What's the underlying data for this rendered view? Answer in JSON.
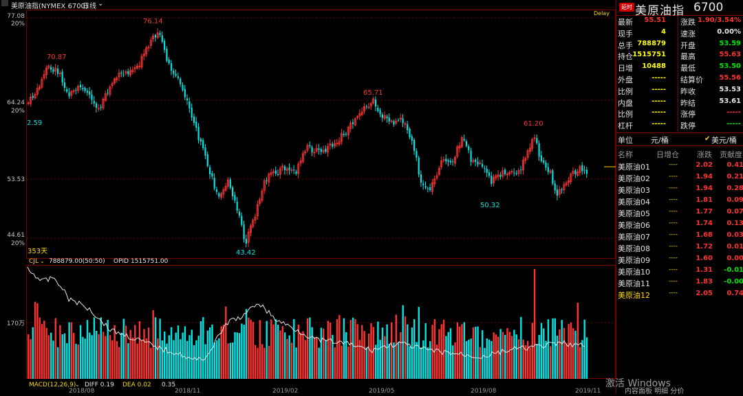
{
  "header": {
    "instrument": "美原油指(NYMEX 6700)",
    "period": "日线",
    "period_icon": "chevron-down-icon",
    "delay": "Delay"
  },
  "price_axis": {
    "labels": [
      {
        "price": "77.08",
        "pct": "20%"
      },
      {
        "price": "64.24",
        "pct": "20%"
      },
      {
        "price": "53.53",
        "pct": ""
      },
      {
        "price": "44.61",
        "pct": "20%"
      }
    ]
  },
  "annotations": {
    "high1": "70.87",
    "high2": "76.14",
    "low_left": "2.59",
    "low1": "43.42",
    "high3": "65.71",
    "low2": "50.32",
    "high4": "61.20",
    "days": "353天"
  },
  "volume_panel": {
    "cjl_label": "CJL",
    "cjl_value": "788879.00(50:50)",
    "opid": "OPID 1515751.00",
    "axis_label": "170万"
  },
  "macd": {
    "label": "MACD(12,26,9)",
    "diff": "DIFF 0.19",
    "dea": "DEA 0.02",
    "macd": "0.35"
  },
  "date_axis": [
    "2018/08",
    "2018/11",
    "2019/02",
    "2019/05",
    "2019/08",
    "2019/11"
  ],
  "quote_panel": {
    "badge": "延时",
    "title": "美原油指",
    "code": "6700",
    "left": [
      {
        "label": "最新",
        "value": "55.51",
        "color": "#ff3232"
      },
      {
        "label": "现手",
        "value": "4",
        "color": "#ffff00"
      },
      {
        "label": "总手",
        "value": "788879",
        "color": "#ffff00"
      },
      {
        "label": "持仓",
        "value": "1515751",
        "color": "#ffff00"
      },
      {
        "label": "日增",
        "value": "10488",
        "color": "#ffff00"
      },
      {
        "label": "外盘",
        "value": "-----",
        "color": "#ffff00"
      },
      {
        "label": "比例",
        "value": "-----",
        "color": "#ffff00"
      },
      {
        "label": "内盘",
        "value": "-----",
        "color": "#ffff00"
      },
      {
        "label": "比例",
        "value": "-----",
        "color": "#ffff00"
      },
      {
        "label": "杠杆",
        "value": "-----",
        "color": "#ffff00"
      }
    ],
    "right": [
      {
        "label": "涨跌",
        "value": "1.90/3.54%",
        "color": "#ff3232"
      },
      {
        "label": "速涨",
        "value": "0.00%",
        "color": "#e8e8e8"
      },
      {
        "label": "开盘",
        "value": "53.59",
        "color": "#00e600"
      },
      {
        "label": "最高",
        "value": "55.63",
        "color": "#ff3232"
      },
      {
        "label": "最低",
        "value": "53.50",
        "color": "#00e600"
      },
      {
        "label": "结算价",
        "value": "55.56",
        "color": "#ff3232"
      },
      {
        "label": "昨收",
        "value": "53.53",
        "color": "#e8e8e8"
      },
      {
        "label": "昨结",
        "value": "53.61",
        "color": "#e8e8e8"
      },
      {
        "label": "涨停",
        "value": "-----",
        "color": "#ff3232"
      },
      {
        "label": "跌停",
        "value": "-----",
        "color": "#00e600"
      }
    ],
    "unit_label": "单位",
    "unit1": "元/桶",
    "unit2": "美元/桶",
    "check_icon": "check-icon"
  },
  "contracts": {
    "headers": [
      "名称",
      "日增仓",
      "涨跌",
      "贡献度"
    ],
    "rows": [
      {
        "name": "美原油01",
        "inc": "----",
        "chg": "2.02",
        "contrib": "0.41",
        "cc": "#ff3232"
      },
      {
        "name": "美原油02",
        "inc": "----",
        "chg": "1.94",
        "contrib": "0.21",
        "cc": "#ff3232"
      },
      {
        "name": "美原油03",
        "inc": "----",
        "chg": "1.94",
        "contrib": "0.28",
        "cc": "#ff3232"
      },
      {
        "name": "美原油04",
        "inc": "----",
        "chg": "1.81",
        "contrib": "0.09",
        "cc": "#ff3232"
      },
      {
        "name": "美原油05",
        "inc": "----",
        "chg": "1.77",
        "contrib": "0.07",
        "cc": "#ff3232"
      },
      {
        "name": "美原油06",
        "inc": "----",
        "chg": "1.74",
        "contrib": "0.13",
        "cc": "#ff3232"
      },
      {
        "name": "美原油07",
        "inc": "----",
        "chg": "1.68",
        "contrib": "0.03",
        "cc": "#ff3232"
      },
      {
        "name": "美原油08",
        "inc": "----",
        "chg": "1.72",
        "contrib": "0.01",
        "cc": "#ff3232"
      },
      {
        "name": "美原油09",
        "inc": "----",
        "chg": "1.60",
        "contrib": "0.00",
        "cc": "#ff3232"
      },
      {
        "name": "美原油10",
        "inc": "----",
        "chg": "1.31",
        "contrib": "-0.01",
        "cc": "#00e600"
      },
      {
        "name": "美原油11",
        "inc": "----",
        "chg": "1.83",
        "contrib": "-0.00",
        "cc": "#00e600"
      },
      {
        "name": "美原油12",
        "inc": "----",
        "chg": "2.05",
        "contrib": "0.74",
        "cc": "#ff3232",
        "highlight": true
      }
    ]
  },
  "watermark": "激活 Windows",
  "bottom_tabs": "内容面板  明细  分价"
}
